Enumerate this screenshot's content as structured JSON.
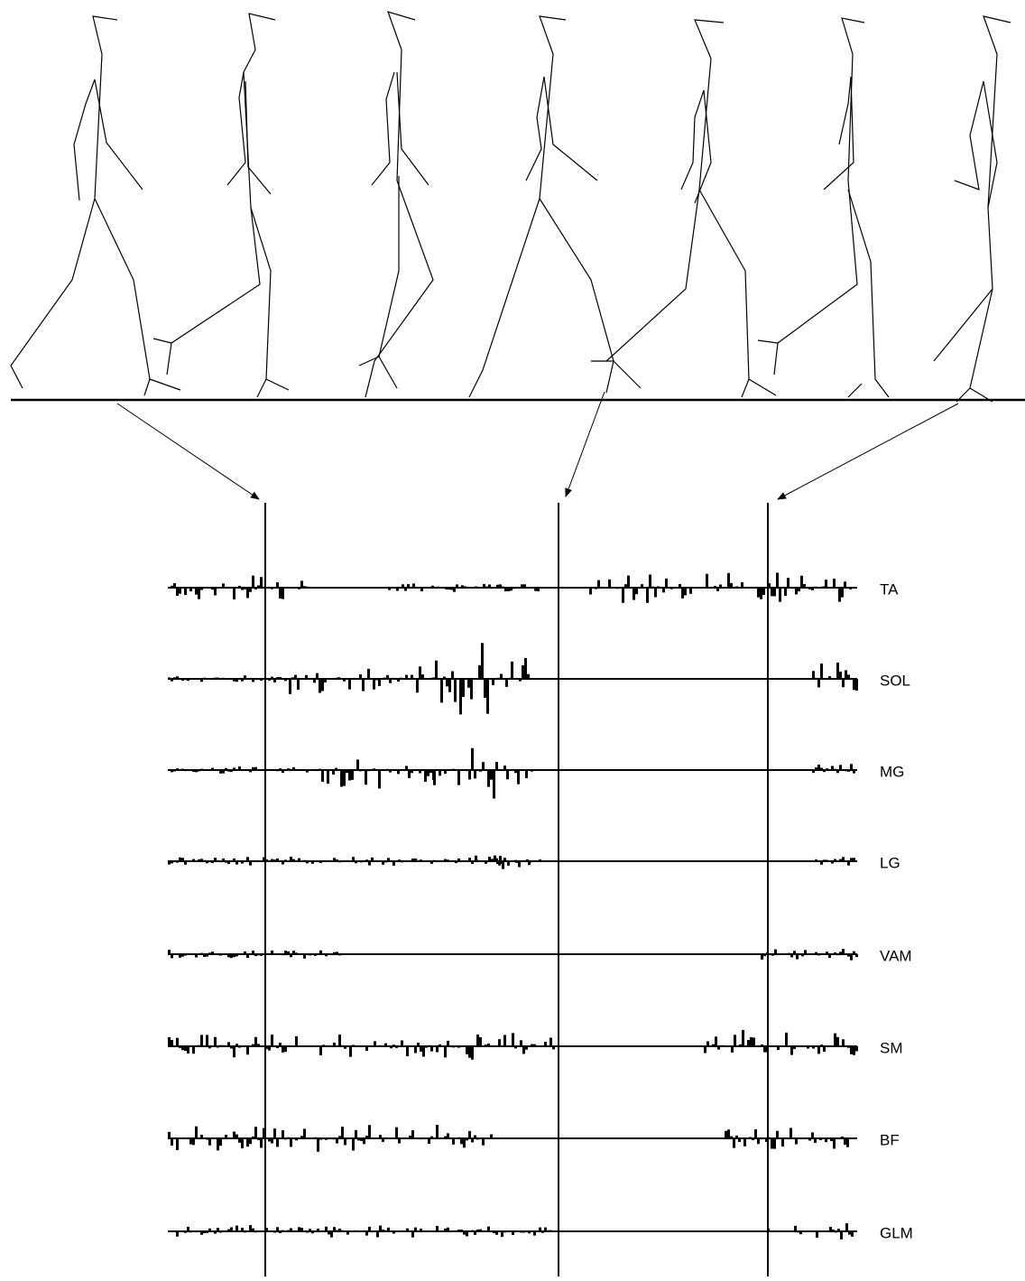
{
  "muscles": [
    "TA",
    "SOL",
    "MG",
    "LG",
    "VAM",
    "SM",
    "BF",
    "GLM"
  ]
}
